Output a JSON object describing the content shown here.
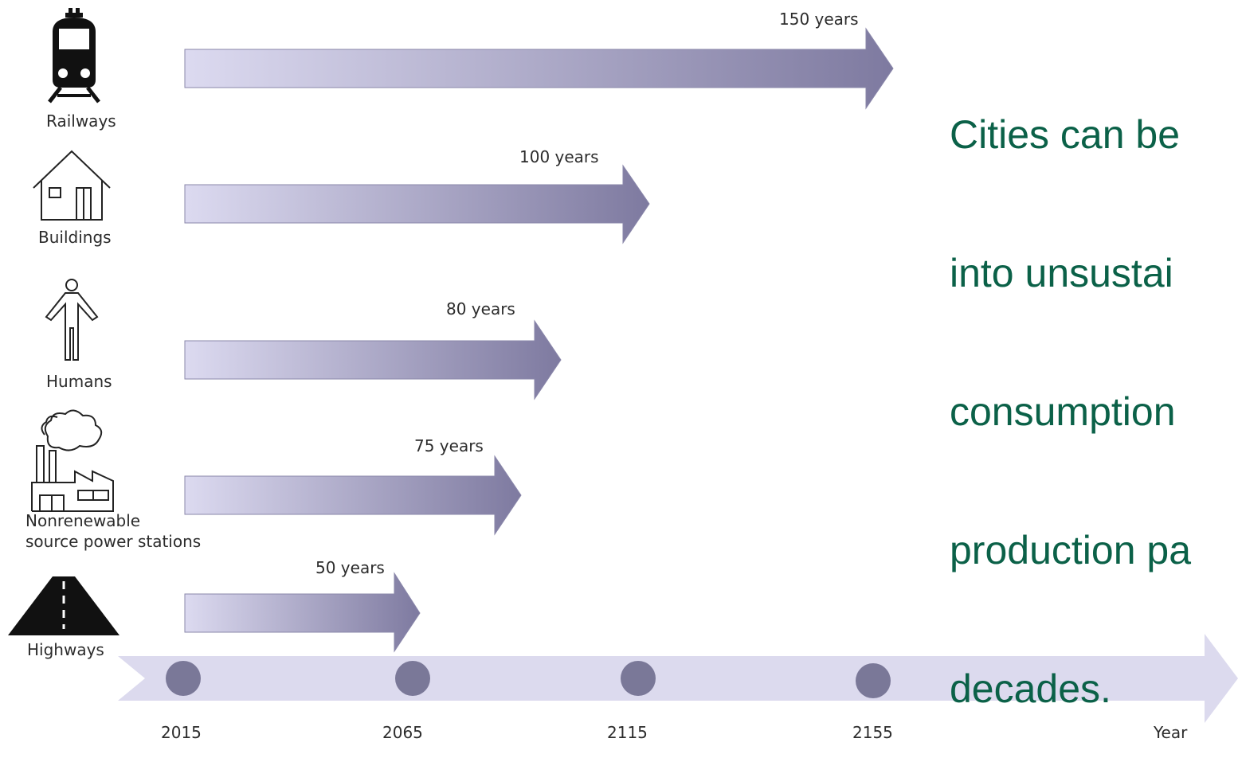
{
  "headline": {
    "lines": [
      "Cities can be",
      "into unsustai",
      "consumption",
      "production pa",
      "decades."
    ]
  },
  "categories": [
    {
      "label": "Railways",
      "duration": "150 years",
      "icon": "train-icon"
    },
    {
      "label": "Buildings",
      "duration": "100 years",
      "icon": "house-icon"
    },
    {
      "label": "Humans",
      "duration": "80 years",
      "icon": "person-icon"
    },
    {
      "label_line1": "Nonrenewable",
      "label_line2": "source power stations",
      "duration": "75 years",
      "icon": "factory-icon"
    },
    {
      "label": "Highways",
      "duration": "50 years",
      "icon": "road-icon"
    }
  ],
  "timeline": {
    "years": [
      "2015",
      "2065",
      "2115",
      "2155"
    ],
    "axis_label": "Year"
  },
  "colors": {
    "arrow_start": "#dcdaf0",
    "arrow_end": "#7e7aa0",
    "timeline_band": "#dcdaee",
    "timeline_dot": "#7a7898",
    "headline": "#0b6148"
  }
}
